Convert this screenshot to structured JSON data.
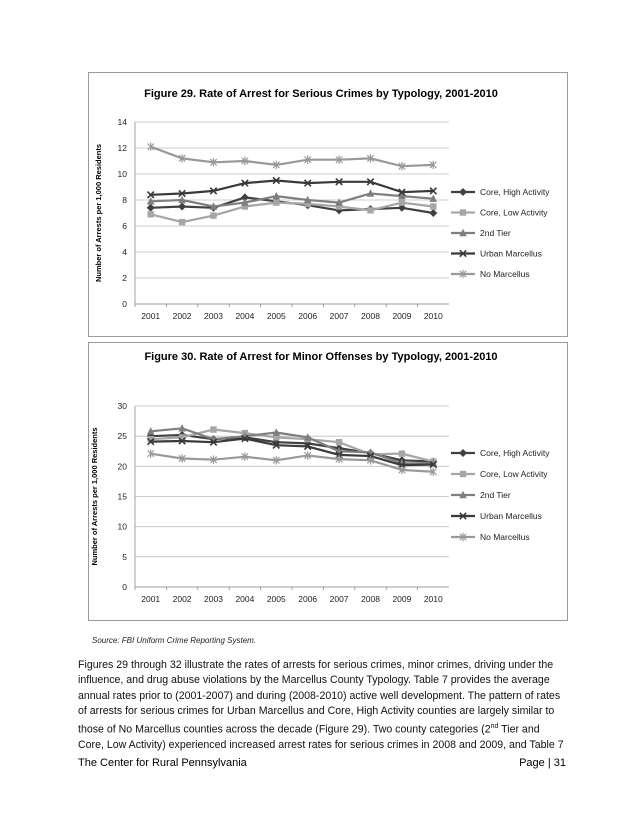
{
  "charts": [
    {
      "title": "Figure 29. Rate of Arrest for Serious Crimes by Typology, 2001-2010",
      "ylabel": "Number of Arrests per 1,000 Residents",
      "yticks": [
        "0",
        "2",
        "4",
        "6",
        "8",
        "10",
        "12",
        "14"
      ],
      "xticks": [
        "2001",
        "2002",
        "2003",
        "2004",
        "2005",
        "2006",
        "2007",
        "2008",
        "2009",
        "2010"
      ]
    },
    {
      "title": "Figure 30. Rate of Arrest for Minor Offenses by Typology, 2001-2010",
      "ylabel": "Number of Arrests per 1,000 Residents",
      "yticks": [
        "0",
        "5",
        "10",
        "15",
        "20",
        "25",
        "30"
      ],
      "xticks": [
        "2001",
        "2002",
        "2003",
        "2004",
        "2005",
        "2006",
        "2007",
        "2008",
        "2009",
        "2010"
      ]
    }
  ],
  "chart_data": [
    {
      "type": "line",
      "title": "Figure 29. Rate of Arrest for Serious Crimes by Typology, 2001-2010",
      "xlabel": "",
      "ylabel": "Number of Arrests per 1,000 Residents",
      "x": [
        2001,
        2002,
        2003,
        2004,
        2005,
        2006,
        2007,
        2008,
        2009,
        2010
      ],
      "ylim": [
        0,
        14
      ],
      "grid": true,
      "legend": "right",
      "series": [
        {
          "name": "Core, High Activity",
          "marker": "diamond",
          "color": "#404040",
          "values": [
            7.4,
            7.5,
            7.4,
            8.2,
            7.9,
            7.6,
            7.2,
            7.3,
            7.4,
            7.0
          ]
        },
        {
          "name": "Core, Low Activity",
          "marker": "square",
          "color": "#a6a6a6",
          "values": [
            6.9,
            6.3,
            6.8,
            7.5,
            7.8,
            7.7,
            7.5,
            7.2,
            7.8,
            7.5
          ]
        },
        {
          "name": "2nd Tier",
          "marker": "triangle",
          "color": "#7f7f7f",
          "values": [
            7.9,
            8.0,
            7.5,
            7.8,
            8.3,
            8.0,
            7.8,
            8.5,
            8.3,
            8.1
          ]
        },
        {
          "name": "Urban Marcellus",
          "marker": "x",
          "color": "#3a3a3a",
          "values": [
            8.4,
            8.5,
            8.7,
            9.3,
            9.5,
            9.3,
            9.4,
            9.4,
            8.6,
            8.7
          ]
        },
        {
          "name": "No Marcellus",
          "marker": "star",
          "color": "#999999",
          "values": [
            12.1,
            11.2,
            10.9,
            11.0,
            10.7,
            11.1,
            11.1,
            11.2,
            10.6,
            10.7
          ]
        }
      ]
    },
    {
      "type": "line",
      "title": "Figure 30. Rate of Arrest for Minor Offenses by Typology, 2001-2010",
      "xlabel": "",
      "ylabel": "Number of Arrests per 1,000 Residents",
      "x": [
        2001,
        2002,
        2003,
        2004,
        2005,
        2006,
        2007,
        2008,
        2009,
        2010
      ],
      "ylim": [
        0,
        30
      ],
      "grid": true,
      "legend": "right",
      "series": [
        {
          "name": "Core, High Activity",
          "marker": "diamond",
          "color": "#404040",
          "values": [
            25.0,
            25.2,
            24.5,
            24.8,
            24.0,
            23.8,
            23.0,
            22.2,
            21.0,
            20.8
          ]
        },
        {
          "name": "Core, Low Activity",
          "marker": "square",
          "color": "#a6a6a6",
          "values": [
            24.5,
            24.8,
            26.1,
            25.5,
            24.8,
            24.5,
            24.0,
            22.0,
            22.1,
            20.8
          ]
        },
        {
          "name": "2nd Tier",
          "marker": "triangle",
          "color": "#7f7f7f",
          "values": [
            25.8,
            26.3,
            24.5,
            25.0,
            25.6,
            24.8,
            22.5,
            22.3,
            20.5,
            20.5
          ]
        },
        {
          "name": "Urban Marcellus",
          "marker": "x",
          "color": "#3a3a3a",
          "values": [
            24.1,
            24.2,
            24.0,
            24.6,
            23.5,
            23.3,
            21.9,
            21.7,
            20.2,
            20.3
          ]
        },
        {
          "name": "No Marcellus",
          "marker": "star",
          "color": "#999999",
          "values": [
            22.1,
            21.3,
            21.1,
            21.6,
            21.0,
            21.8,
            21.2,
            21.0,
            19.4,
            19.1
          ]
        }
      ]
    }
  ],
  "source": "Source: FBI Uniform Crime Reporting System.",
  "body": {
    "part1": "Figures 29 through 32 illustrate the rates of arrests for serious crimes, minor crimes, driving under the influence, and drug abuse violations by the Marcellus County Typology. Table 7 provides the average annual rates prior to (2001-2007) and during (2008-2010) active well development. The pattern of rates of arrests for serious crimes for Urban Marcellus and Core, High Activity counties are largely similar to those of No Marcellus counties across the decade (Figure 29). Two county categories (2",
    "sup": "nd",
    "part2": " Tier and Core, Low Activity) experienced increased arrest rates for serious crimes in 2008 and 2009, and Table 7"
  },
  "footer": {
    "left": "The Center for Rural Pennsylvania",
    "right": "Page | 31"
  }
}
